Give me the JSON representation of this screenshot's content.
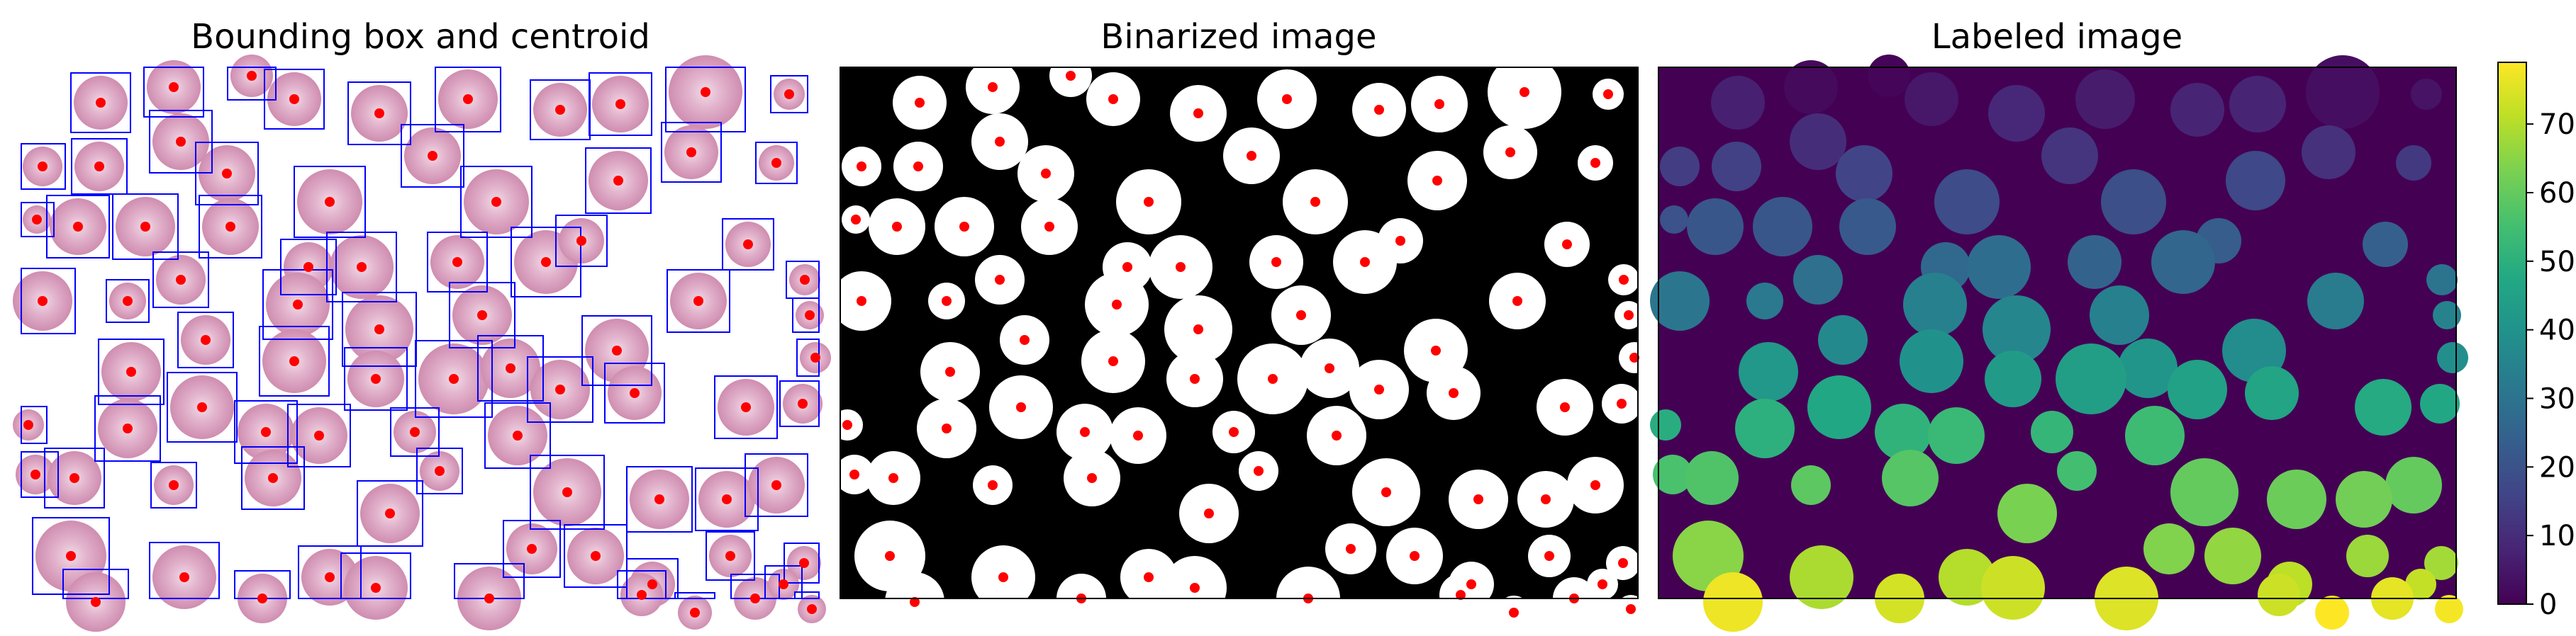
{
  "panels": [
    {
      "title": "Bounding box and centroid",
      "kind": "boxes"
    },
    {
      "title": "Binarized image",
      "kind": "binary"
    },
    {
      "title": "Labeled image",
      "kind": "labeled"
    }
  ],
  "colorbar": {
    "colormap": "viridis",
    "range": [
      0,
      79
    ],
    "ticks": [
      "0",
      "10",
      "20",
      "30",
      "40",
      "50",
      "60",
      "70"
    ]
  },
  "colors": {
    "box": "#0000ff",
    "centroid": "#ff0000",
    "cell_fill": "#d79ab9",
    "cell_core": "#edd1e0",
    "background_binary": "#000000",
    "foreground_binary": "#ffffff"
  }
}
